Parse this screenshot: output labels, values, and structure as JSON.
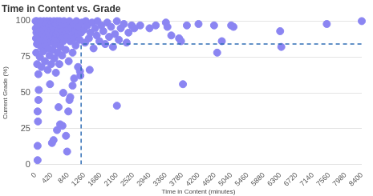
{
  "chart_data": {
    "type": "scatter",
    "title": "Time in Content vs. Grade",
    "x_label": "Time in Content (minutes)",
    "y_label": "Current Grade (%)",
    "color": "#8b85f2",
    "x": [
      10,
      15,
      20,
      25,
      30,
      40,
      45,
      50,
      60,
      70,
      80,
      90,
      100,
      110,
      120,
      130,
      140,
      150,
      160,
      170,
      180,
      190,
      200,
      210,
      220,
      230,
      240,
      250,
      260,
      270,
      280,
      290,
      300,
      310,
      320,
      330,
      340,
      350,
      360,
      370,
      380,
      390,
      400,
      410,
      420,
      430,
      440,
      450,
      460,
      470,
      480,
      490,
      500,
      510,
      520,
      530,
      540,
      550,
      560,
      570,
      580,
      590,
      600,
      610,
      620,
      630,
      640,
      650,
      660,
      670,
      680,
      690,
      700,
      720,
      740,
      760,
      780,
      800,
      820,
      840,
      860,
      880,
      900,
      920,
      940,
      960,
      980,
      1000,
      1020,
      1040,
      1060,
      1080,
      1100,
      1120,
      1140,
      1160,
      1180,
      1200,
      60,
      60,
      70,
      60,
      80,
      90,
      430,
      470,
      380,
      560,
      600,
      640,
      700,
      820,
      790,
      850,
      880,
      900,
      960,
      1000,
      1150,
      720,
      1250,
      1280,
      1300,
      1340,
      1380,
      1400,
      1420,
      1460,
      1500,
      1540,
      1580,
      1600,
      1650,
      1700,
      1750,
      1800,
      1850,
      1900,
      1950,
      2000,
      2050,
      2100,
      2100,
      2150,
      2200,
      2280,
      2350,
      2400,
      2480,
      2550,
      2700,
      2940,
      3100,
      3360,
      3400,
      3500,
      3700,
      3750,
      3800,
      3900,
      4200,
      4600,
      4680,
      4800,
      5040,
      5100,
      6300,
      6330,
      7500,
      8400
    ],
    "values": [
      100,
      95,
      88,
      78,
      92,
      100,
      84,
      70,
      97,
      90,
      63,
      99,
      86,
      93,
      75,
      100,
      95,
      82,
      68,
      91,
      99,
      87,
      94,
      79,
      100,
      97,
      85,
      72,
      90,
      98,
      83,
      95,
      100,
      88,
      66,
      93,
      81,
      97,
      90,
      76,
      100,
      86,
      94,
      70,
      99,
      89,
      96,
      80,
      92,
      85,
      100,
      74,
      95,
      88,
      98,
      64,
      91,
      84,
      100,
      93,
      78,
      97,
      87,
      95,
      70,
      100,
      90,
      82,
      96,
      88,
      99,
      76,
      93,
      86,
      100,
      91,
      80,
      97,
      89,
      94,
      72,
      100,
      86,
      95,
      90,
      78,
      98,
      88,
      93,
      83,
      100,
      91,
      68,
      96,
      87,
      62,
      92,
      99,
      3,
      13,
      30,
      37,
      45,
      52,
      15,
      17,
      56,
      24,
      40,
      28,
      27,
      9,
      20,
      37,
      45,
      47,
      55,
      60,
      65,
      50,
      94,
      85,
      100,
      97,
      88,
      66,
      92,
      99,
      81,
      95,
      90,
      100,
      86,
      97,
      93,
      84,
      99,
      89,
      96,
      82,
      91,
      100,
      41,
      87,
      95,
      98,
      85,
      92,
      97,
      95,
      97,
      95,
      97,
      99,
      96,
      90,
      88,
      86,
      56,
      97,
      98,
      97,
      78,
      86,
      97,
      96,
      93,
      82,
      98,
      100
    ],
    "reference_x": 1180,
    "reference_y": 84,
    "xlim": [
      0,
      8400
    ],
    "xticks": [
      0,
      420,
      840,
      1260,
      1680,
      2100,
      2520,
      2940,
      3360,
      3780,
      4200,
      4620,
      5040,
      5460,
      5880,
      6300,
      6720,
      7140,
      7560,
      7980,
      8400
    ],
    "ylim": [
      0,
      100
    ],
    "yticks": [
      0,
      25,
      50,
      75,
      100
    ],
    "grid": true
  }
}
